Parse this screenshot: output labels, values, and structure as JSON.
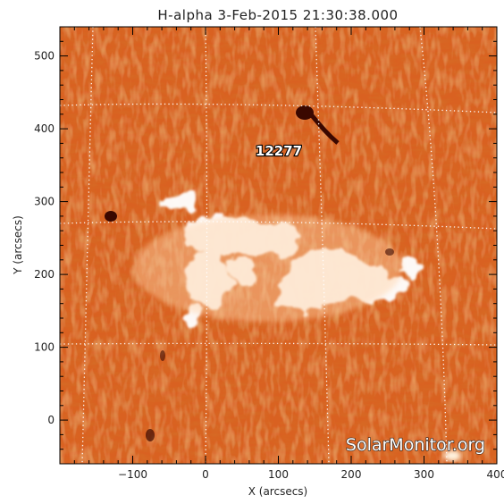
{
  "title": "H-alpha   3-Feb-2015 21:30:38.000",
  "x_axis_label": "X (arcsecs)",
  "y_axis_label": "Y (arcsecs)",
  "x_range": [
    -200,
    400
  ],
  "y_range": [
    -60,
    540
  ],
  "x_ticks": [
    "-100",
    "0",
    "100",
    "200",
    "300",
    "400"
  ],
  "y_ticks": [
    "0",
    "100",
    "200",
    "300",
    "400",
    "500"
  ],
  "region_label": "12277",
  "watermark": "SolarMonitor.org",
  "colors": {
    "chromosphere_base": "#d2571a",
    "plage": "#ffffff",
    "grid": "#ffffff",
    "frame": "#000000"
  }
}
